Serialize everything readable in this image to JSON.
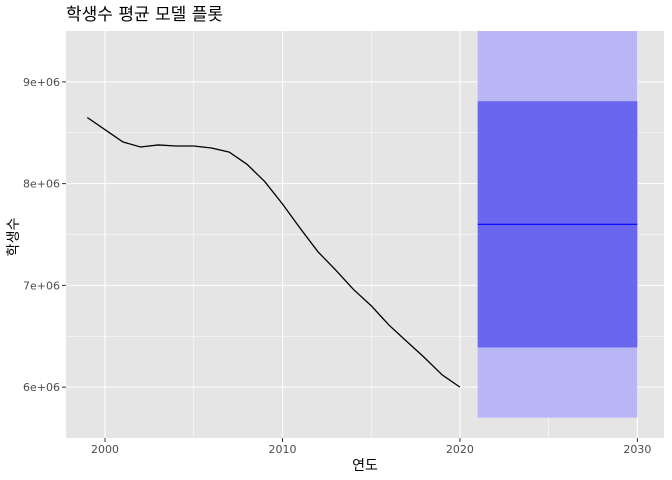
{
  "chart_data": {
    "type": "line",
    "title": "학생수 평균 모델 플롯",
    "xlabel": "연도",
    "ylabel": "학생수",
    "xlim": [
      1997.8,
      2031.5
    ],
    "ylim": [
      5500000,
      9500000
    ],
    "x_ticks": [
      2000,
      2010,
      2020,
      2030
    ],
    "x_tick_labels": [
      "2000",
      "2010",
      "2020",
      "2030"
    ],
    "y_ticks": [
      6000000,
      7000000,
      8000000,
      9000000
    ],
    "y_tick_labels": [
      "6e+06",
      "7e+06",
      "8e+06",
      "9e+06"
    ],
    "grid": true,
    "series": [
      {
        "x": [
          1999,
          2000,
          2001,
          2002,
          2003,
          2004,
          2005,
          2006,
          2007,
          2008,
          2009,
          2010,
          2011,
          2012,
          2013,
          2014,
          2015,
          2016,
          2017,
          2018,
          2019,
          2020
        ],
        "values": [
          8650000,
          8530000,
          8410000,
          8360000,
          8380000,
          8370000,
          8370000,
          8350000,
          8310000,
          8190000,
          8020000,
          7800000,
          7560000,
          7330000,
          7150000,
          6960000,
          6800000,
          6610000,
          6450000,
          6290000,
          6120000,
          6000000
        ],
        "color": "#000000"
      }
    ],
    "forecast": {
      "x_start": 2021,
      "x_end": 2030,
      "mean": 7600000,
      "interval_80": [
        6390000,
        8810000
      ],
      "interval_95": [
        5700000,
        9500000
      ],
      "mean_color": "#0000ff",
      "inner_color": "#6b66ef",
      "outer_color": "#b8b6f5"
    },
    "colors": {
      "panel": "#e5e5e5",
      "line": "#000000"
    }
  }
}
